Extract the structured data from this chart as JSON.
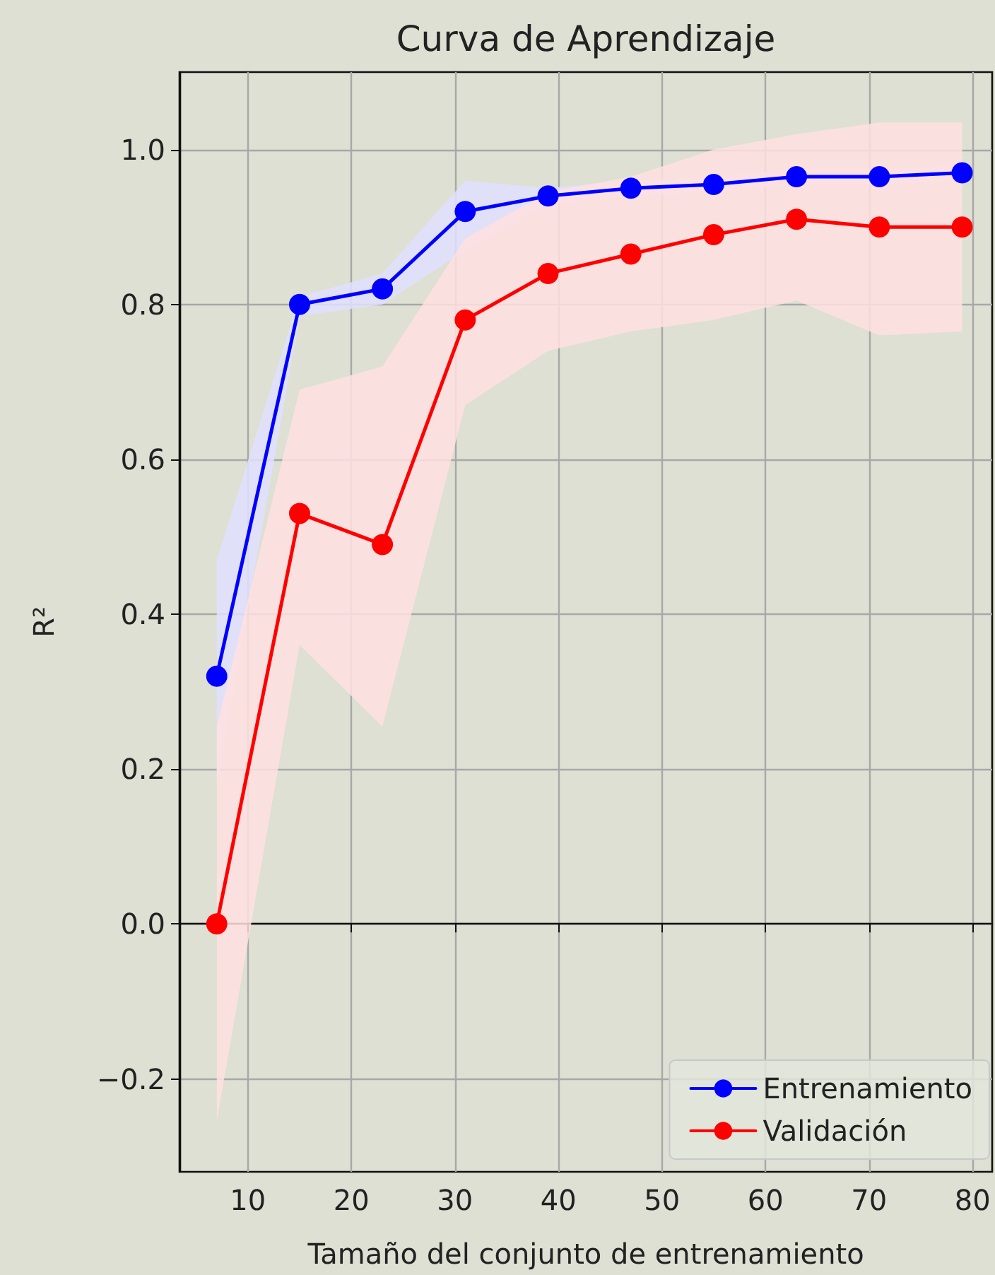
{
  "chart_data": {
    "type": "line",
    "title": "Curva de Aprendizaje",
    "xlabel": "Tamaño del conjunto de entrenamiento",
    "ylabel": "R²",
    "x": [
      7,
      15,
      23,
      31,
      39,
      47,
      55,
      63,
      71,
      79
    ],
    "series": [
      {
        "name": "Entrenamiento",
        "color": "#0000ff",
        "values": [
          0.32,
          0.8,
          0.82,
          0.92,
          0.94,
          0.95,
          0.955,
          0.965,
          0.965,
          0.97
        ],
        "lower": [
          0.18,
          0.785,
          0.8,
          0.87,
          0.93,
          0.94,
          0.945,
          0.955,
          0.955,
          0.96
        ],
        "upper": [
          0.47,
          0.81,
          0.84,
          0.96,
          0.95,
          0.96,
          0.965,
          0.975,
          0.975,
          0.98
        ]
      },
      {
        "name": "Validación",
        "color": "#ff0000",
        "values": [
          0.0,
          0.53,
          0.49,
          0.78,
          0.84,
          0.865,
          0.89,
          0.91,
          0.9,
          0.9
        ],
        "lower": [
          -0.255,
          0.36,
          0.255,
          0.67,
          0.74,
          0.765,
          0.78,
          0.805,
          0.76,
          0.765
        ],
        "upper": [
          0.255,
          0.69,
          0.72,
          0.885,
          0.945,
          0.965,
          1.0,
          1.02,
          1.035,
          1.035
        ]
      }
    ],
    "xlim": [
      3.4,
      81.9
    ],
    "ylim": [
      -0.32,
      1.1
    ],
    "xticks": [
      10,
      20,
      30,
      40,
      50,
      60,
      70,
      80
    ],
    "yticks": [
      {
        "value": -0.2,
        "label": "−0.2"
      },
      {
        "value": 0,
        "label": "0.0"
      },
      {
        "value": 0.2,
        "label": "0.2"
      },
      {
        "value": 0.4,
        "label": "0.4"
      },
      {
        "value": 0.6,
        "label": "0.6"
      },
      {
        "value": 0.8,
        "label": "0.8"
      },
      {
        "value": 1,
        "label": "1.0"
      }
    ],
    "grid": true,
    "legend": "bottom right",
    "marker": "circle",
    "line_style": "solid"
  }
}
